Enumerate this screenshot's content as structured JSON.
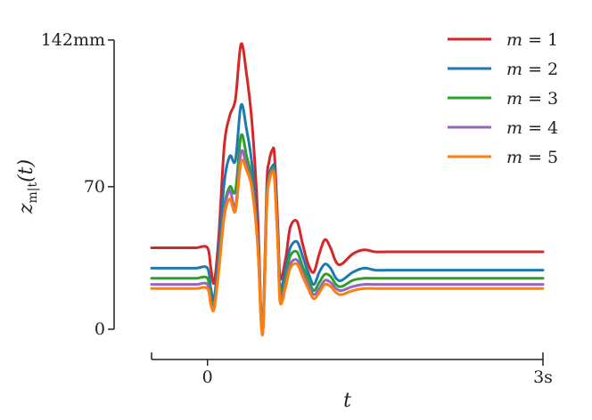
{
  "chart_data": {
    "type": "line",
    "title": "",
    "xlabel": "t",
    "ylabel": "z_m|t(t)",
    "ylabel_parts": {
      "base": "z",
      "sub": "m|t",
      "arg": "(t)"
    },
    "xlim": [
      -0.5,
      3.0
    ],
    "ylim": [
      0,
      142
    ],
    "x_ticks": [
      {
        "value": 0,
        "label": "0"
      },
      {
        "value": 3.0,
        "label": "3s"
      }
    ],
    "y_ticks": [
      {
        "value": 0,
        "label": "0"
      },
      {
        "value": 70,
        "label": "70"
      },
      {
        "value": 142,
        "label": "142mm"
      }
    ],
    "grid": false,
    "legend_position": "top-right",
    "x": [
      -0.5,
      -0.4,
      -0.3,
      -0.2,
      -0.1,
      0.0,
      0.03,
      0.06,
      0.1,
      0.15,
      0.2,
      0.25,
      0.3,
      0.35,
      0.4,
      0.45,
      0.48,
      0.5,
      0.53,
      0.55,
      0.58,
      0.6,
      0.63,
      0.65,
      0.7,
      0.74,
      0.8,
      0.85,
      0.9,
      0.95,
      1.0,
      1.05,
      1.1,
      1.15,
      1.2,
      1.3,
      1.4,
      1.5,
      1.6,
      1.7,
      1.8,
      1.9,
      2.0,
      2.2,
      2.5,
      2.8,
      3.0
    ],
    "series": [
      {
        "name": "m = 1",
        "label_var": "m",
        "label_num": "1",
        "color": "#d62728",
        "values": [
          40,
          40,
          40,
          40,
          40,
          40,
          30,
          23,
          45,
          90,
          105,
          113,
          140,
          125,
          100,
          55,
          6,
          5,
          70,
          82,
          88,
          85,
          50,
          25,
          35,
          50,
          53,
          42,
          32,
          28,
          37,
          44,
          40,
          33,
          32,
          37,
          39,
          38,
          38,
          38,
          38,
          38,
          38,
          38,
          38,
          38,
          38
        ]
      },
      {
        "name": "m = 2",
        "label_var": "m",
        "label_num": "2",
        "color": "#1f77b4",
        "values": [
          30,
          30,
          30,
          30,
          30,
          30,
          20,
          15,
          38,
          72,
          85,
          83,
          110,
          98,
          80,
          45,
          5,
          4,
          64,
          75,
          80,
          77,
          45,
          20,
          30,
          40,
          43,
          36,
          28,
          22,
          28,
          32,
          30,
          25,
          24,
          28,
          30,
          29,
          29,
          29,
          29,
          29,
          29,
          29,
          29,
          29,
          29
        ]
      },
      {
        "name": "m = 3",
        "label_var": "m",
        "label_num": "3",
        "color": "#2ca02c",
        "values": [
          25,
          25,
          25,
          25,
          25,
          25,
          15,
          12,
          32,
          60,
          70,
          68,
          95,
          85,
          72,
          42,
          4,
          4,
          62,
          74,
          79,
          75,
          42,
          17,
          26,
          36,
          38,
          31,
          25,
          19,
          23,
          27,
          26,
          22,
          21,
          24,
          25,
          25,
          25,
          25,
          25,
          25,
          25,
          25,
          25,
          25,
          25
        ]
      },
      {
        "name": "m = 4",
        "label_var": "m",
        "label_num": "4",
        "color": "#9467bd",
        "values": [
          22,
          22,
          22,
          22,
          22,
          22,
          13,
          11,
          30,
          58,
          68,
          60,
          87,
          80,
          70,
          42,
          4,
          3,
          61,
          73,
          78,
          74,
          41,
          15,
          23,
          32,
          34,
          28,
          22,
          17,
          20,
          24,
          23,
          20,
          19,
          21,
          22,
          22,
          22,
          22,
          22,
          22,
          22,
          22,
          22,
          22,
          22
        ]
      },
      {
        "name": "m = 5",
        "label_var": "m",
        "label_num": "5",
        "color": "#ff7f0e",
        "values": [
          20,
          20,
          20,
          20,
          20,
          20,
          12,
          10,
          28,
          55,
          64,
          58,
          82,
          78,
          68,
          40,
          3,
          3,
          60,
          72,
          77,
          73,
          40,
          13,
          21,
          30,
          32,
          26,
          20,
          15,
          18,
          22,
          21,
          18,
          17,
          19,
          20,
          20,
          20,
          20,
          20,
          20,
          20,
          20,
          20,
          20,
          20
        ]
      }
    ]
  }
}
